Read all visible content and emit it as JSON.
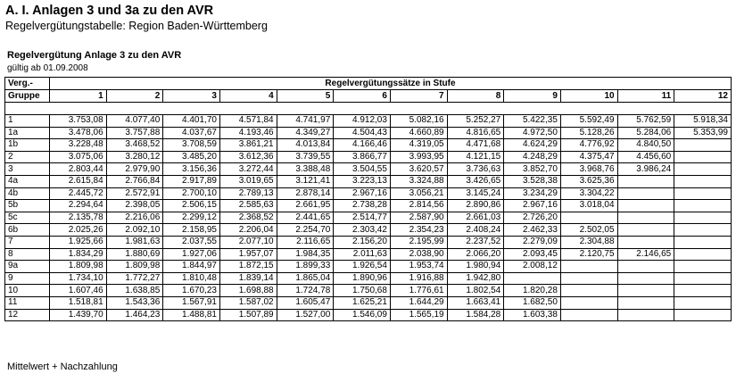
{
  "title": "A. I. Anlagen 3 und 3a zu den AVR",
  "subtitle": "Regelvergütungstabelle: Region Baden-Württemberg",
  "section_title": "Regelvergütung Anlage 3 zu den AVR",
  "valid_from": "gültig ab 01.09.2008",
  "table": {
    "group_header_1": "Verg.-",
    "group_header_2": "Gruppe",
    "levels_header": "Regelvergütungssätze in Stufe",
    "levels": [
      "1",
      "2",
      "3",
      "4",
      "5",
      "6",
      "7",
      "8",
      "9",
      "10",
      "11",
      "12"
    ],
    "rows": [
      {
        "group": "1",
        "values": [
          "3.753,08",
          "4.077,40",
          "4.401,70",
          "4.571,84",
          "4.741,97",
          "4.912,03",
          "5.082,16",
          "5.252,27",
          "5.422,35",
          "5.592,49",
          "5.762,59",
          "5.918,34"
        ]
      },
      {
        "group": "1a",
        "values": [
          "3.478,06",
          "3.757,88",
          "4.037,67",
          "4.193,46",
          "4.349,27",
          "4.504,43",
          "4.660,89",
          "4.816,65",
          "4.972,50",
          "5.128,26",
          "5.284,06",
          "5.353,99"
        ]
      },
      {
        "group": "1b",
        "values": [
          "3.228,48",
          "3.468,52",
          "3.708,59",
          "3.861,21",
          "4.013,84",
          "4.166,46",
          "4.319,05",
          "4.471,68",
          "4.624,29",
          "4.776,92",
          "4.840,50",
          ""
        ]
      },
      {
        "group": "2",
        "values": [
          "3.075,06",
          "3.280,12",
          "3.485,20",
          "3.612,36",
          "3.739,55",
          "3.866,77",
          "3.993,95",
          "4.121,15",
          "4.248,29",
          "4.375,47",
          "4.456,60",
          ""
        ]
      },
      {
        "group": "3",
        "values": [
          "2.803,44",
          "2.979,90",
          "3.156,36",
          "3.272,44",
          "3.388,48",
          "3.504,55",
          "3.620,57",
          "3.736,63",
          "3.852,70",
          "3.968,76",
          "3.986,24",
          ""
        ]
      },
      {
        "group": "4a",
        "values": [
          "2.615,84",
          "2.766,84",
          "2.917,89",
          "3.019,65",
          "3.121,41",
          "3.223,13",
          "3.324,88",
          "3.426,65",
          "3.528,38",
          "3.625,36",
          "",
          ""
        ]
      },
      {
        "group": "4b",
        "values": [
          "2.445,72",
          "2.572,91",
          "2.700,10",
          "2.789,13",
          "2.878,14",
          "2.967,16",
          "3.056,21",
          "3.145,24",
          "3.234,29",
          "3.304,22",
          "",
          ""
        ]
      },
      {
        "group": "5b",
        "values": [
          "2.294,64",
          "2.398,05",
          "2.506,15",
          "2.585,63",
          "2.661,95",
          "2.738,28",
          "2.814,56",
          "2.890,86",
          "2.967,16",
          "3.018,04",
          "",
          ""
        ]
      },
      {
        "group": "5c",
        "values": [
          "2.135,78",
          "2.216,06",
          "2.299,12",
          "2.368,52",
          "2.441,65",
          "2.514,77",
          "2.587,90",
          "2.661,03",
          "2.726,20",
          "",
          "",
          ""
        ]
      },
      {
        "group": "6b",
        "values": [
          "2.025,26",
          "2.092,10",
          "2.158,95",
          "2.206,04",
          "2.254,70",
          "2.303,42",
          "2.354,23",
          "2.408,24",
          "2.462,33",
          "2.502,05",
          "",
          ""
        ]
      },
      {
        "group": "7",
        "values": [
          "1.925,66",
          "1.981,63",
          "2.037,55",
          "2.077,10",
          "2.116,65",
          "2.156,20",
          "2.195,99",
          "2.237,52",
          "2.279,09",
          "2.304,88",
          "",
          ""
        ]
      },
      {
        "group": "8",
        "values": [
          "1.834,29",
          "1.880,69",
          "1.927,06",
          "1.957,07",
          "1.984,35",
          "2.011,63",
          "2.038,90",
          "2.066,20",
          "2.093,45",
          "2.120,75",
          "2.146,65",
          ""
        ]
      },
      {
        "group": "9a",
        "values": [
          "1.809,98",
          "1.809,98",
          "1.844,97",
          "1.872,15",
          "1.899,33",
          "1.926,54",
          "1.953,74",
          "1.980,94",
          "2.008,12",
          "",
          "",
          ""
        ]
      },
      {
        "group": "9",
        "values": [
          "1.734,10",
          "1.772,27",
          "1.810,48",
          "1.839,14",
          "1.865,04",
          "1.890,96",
          "1.916,88",
          "1.942,80",
          "",
          "",
          "",
          ""
        ]
      },
      {
        "group": "10",
        "values": [
          "1.607,46",
          "1.638,85",
          "1.670,23",
          "1.698,88",
          "1.724,78",
          "1.750,68",
          "1.776,61",
          "1.802,54",
          "1.820,28",
          "",
          "",
          ""
        ]
      },
      {
        "group": "11",
        "values": [
          "1.518,81",
          "1.543,36",
          "1.567,91",
          "1.587,02",
          "1.605,47",
          "1.625,21",
          "1.644,29",
          "1.663,41",
          "1.682,50",
          "",
          "",
          ""
        ]
      },
      {
        "group": "12",
        "values": [
          "1.439,70",
          "1.464,23",
          "1.488,81",
          "1.507,89",
          "1.527,00",
          "1.546,09",
          "1.565,19",
          "1.584,28",
          "1.603,38",
          "",
          "",
          ""
        ]
      }
    ]
  },
  "footer": "Mittelwert + Nachzahlung"
}
